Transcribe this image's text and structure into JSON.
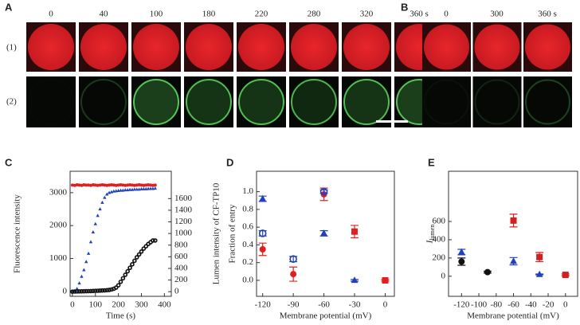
{
  "images": {
    "panel_a": {
      "label": "A",
      "times": [
        "0",
        "40",
        "100",
        "180",
        "220",
        "280",
        "320",
        "360 s"
      ],
      "rows": [
        "(1)",
        "(2)"
      ]
    },
    "panel_b": {
      "label": "B",
      "times": [
        "0",
        "300",
        "360 s"
      ]
    }
  },
  "chart_data": [
    {
      "type": "scatter",
      "panel_label": "C",
      "x_label": "Time (s)",
      "y_label": "Fluorescence intensity",
      "y2_label": "Lumen intensity of CF-TP10",
      "xlim": [
        -10,
        430
      ],
      "xticks": [
        0,
        100,
        200,
        300,
        400
      ],
      "ylim": [
        -150,
        3650
      ],
      "yticks": [
        0,
        1000,
        2000,
        3000
      ],
      "y2lim": [
        -80,
        2070
      ],
      "y2ticks": [
        0,
        200,
        400,
        600,
        800,
        1000,
        1200,
        1400,
        1600
      ],
      "series": [
        {
          "color": "#e02020",
          "marker": "circle",
          "x": [
            0,
            10,
            20,
            30,
            40,
            50,
            60,
            70,
            80,
            90,
            100,
            110,
            120,
            130,
            140,
            150,
            160,
            170,
            180,
            190,
            200,
            210,
            220,
            230,
            240,
            250,
            260,
            270,
            280,
            290,
            300,
            310,
            320,
            330,
            340,
            350,
            360
          ],
          "values": [
            3230,
            3220,
            3240,
            3230,
            3220,
            3240,
            3230,
            3230,
            3220,
            3240,
            3230,
            3220,
            3230,
            3240,
            3230,
            3220,
            3230,
            3240,
            3230,
            3220,
            3230,
            3240,
            3230,
            3220,
            3230,
            3240,
            3230,
            3220,
            3230,
            3240,
            3230,
            3220,
            3230,
            3240,
            3230,
            3220,
            3230
          ]
        },
        {
          "color": "#2040c0",
          "marker": "triangle",
          "x": [
            0,
            10,
            20,
            30,
            40,
            50,
            60,
            70,
            80,
            90,
            100,
            110,
            120,
            130,
            140,
            150,
            160,
            170,
            180,
            190,
            200,
            210,
            220,
            230,
            240,
            250,
            260,
            270,
            280,
            290,
            300,
            310,
            320,
            330,
            340,
            350,
            360
          ],
          "values": [
            0,
            20,
            80,
            250,
            450,
            650,
            900,
            1150,
            1500,
            1800,
            2050,
            2300,
            2500,
            2700,
            2850,
            2950,
            3000,
            3020,
            3040,
            3050,
            3060,
            3070,
            3070,
            3080,
            3080,
            3090,
            3090,
            3100,
            3100,
            3100,
            3110,
            3110,
            3110,
            3120,
            3120,
            3120,
            3130
          ]
        },
        {
          "color": "#111111",
          "marker": "open-circle",
          "axis": "y2",
          "x": [
            0,
            10,
            20,
            30,
            40,
            50,
            60,
            70,
            80,
            90,
            100,
            110,
            120,
            130,
            140,
            150,
            160,
            170,
            180,
            190,
            200,
            210,
            220,
            230,
            240,
            250,
            260,
            270,
            280,
            290,
            300,
            310,
            320,
            330,
            340,
            350,
            360
          ],
          "values": [
            0,
            2,
            4,
            5,
            6,
            7,
            8,
            9,
            10,
            12,
            14,
            16,
            18,
            20,
            22,
            25,
            30,
            38,
            50,
            70,
            110,
            170,
            230,
            290,
            350,
            410,
            470,
            530,
            590,
            640,
            690,
            740,
            780,
            820,
            850,
            880,
            880
          ]
        }
      ]
    },
    {
      "type": "scatter",
      "panel_label": "D",
      "x_label": "Membrane potential (mV)",
      "y_label": "Fraction of entry",
      "xlim": [
        -126,
        9
      ],
      "xticks": [
        -120,
        -90,
        -60,
        -30,
        0
      ],
      "ylim": [
        -0.18,
        1.23
      ],
      "yticks": [
        {
          "value": 0,
          "label": "0.0"
        },
        0.2,
        0.4,
        0.6,
        0.8,
        {
          "value": 1,
          "label": "1.0"
        }
      ],
      "series": [
        {
          "color": "#e02020",
          "marker": "circle",
          "x": [
            -120,
            -90,
            -60
          ],
          "values": [
            0.35,
            0.07,
            0.97
          ],
          "errors": [
            0.07,
            0.08,
            0.07
          ]
        },
        {
          "color": "#e02020",
          "marker": "square",
          "x": [
            -30,
            0
          ],
          "values": [
            0.55,
            0.0
          ],
          "errors": [
            0.07,
            0.01
          ]
        },
        {
          "color": "#2040c0",
          "marker": "open-circle",
          "x": [
            -120,
            -90,
            -60
          ],
          "values": [
            0.53,
            0.24,
            1.0
          ],
          "errors": [
            0.03,
            0.03,
            0.02
          ]
        },
        {
          "color": "#2040c0",
          "marker": "triangle",
          "x": [
            -120,
            -60,
            -30
          ],
          "values": [
            0.92,
            0.53,
            0.0
          ],
          "errors": [
            0.03,
            0.03,
            0.01
          ]
        }
      ]
    },
    {
      "type": "scatter",
      "panel_label": "E",
      "x_label": "Membrane potential (mV)",
      "y_label": "I",
      "y_label_sub": "lumen",
      "xlim": [
        -135,
        14
      ],
      "xticks": [
        -120,
        -100,
        -80,
        -60,
        -40,
        -20,
        0
      ],
      "ylim": [
        -220,
        1150
      ],
      "yticks": [
        0,
        200,
        400,
        600
      ],
      "series": [
        {
          "color": "#111111",
          "marker": "circle",
          "x": [
            -120,
            -90
          ],
          "values": [
            160,
            45
          ],
          "errors": [
            40,
            10
          ]
        },
        {
          "color": "#2040c0",
          "marker": "triangle",
          "x": [
            -120,
            -60,
            -30
          ],
          "values": [
            265,
            165,
            20
          ],
          "errors": [
            30,
            40,
            5
          ]
        },
        {
          "color": "#d02020",
          "marker": "square",
          "x": [
            -60,
            -30,
            0
          ],
          "values": [
            610,
            210,
            15
          ],
          "errors": [
            70,
            50,
            10
          ]
        }
      ]
    }
  ]
}
